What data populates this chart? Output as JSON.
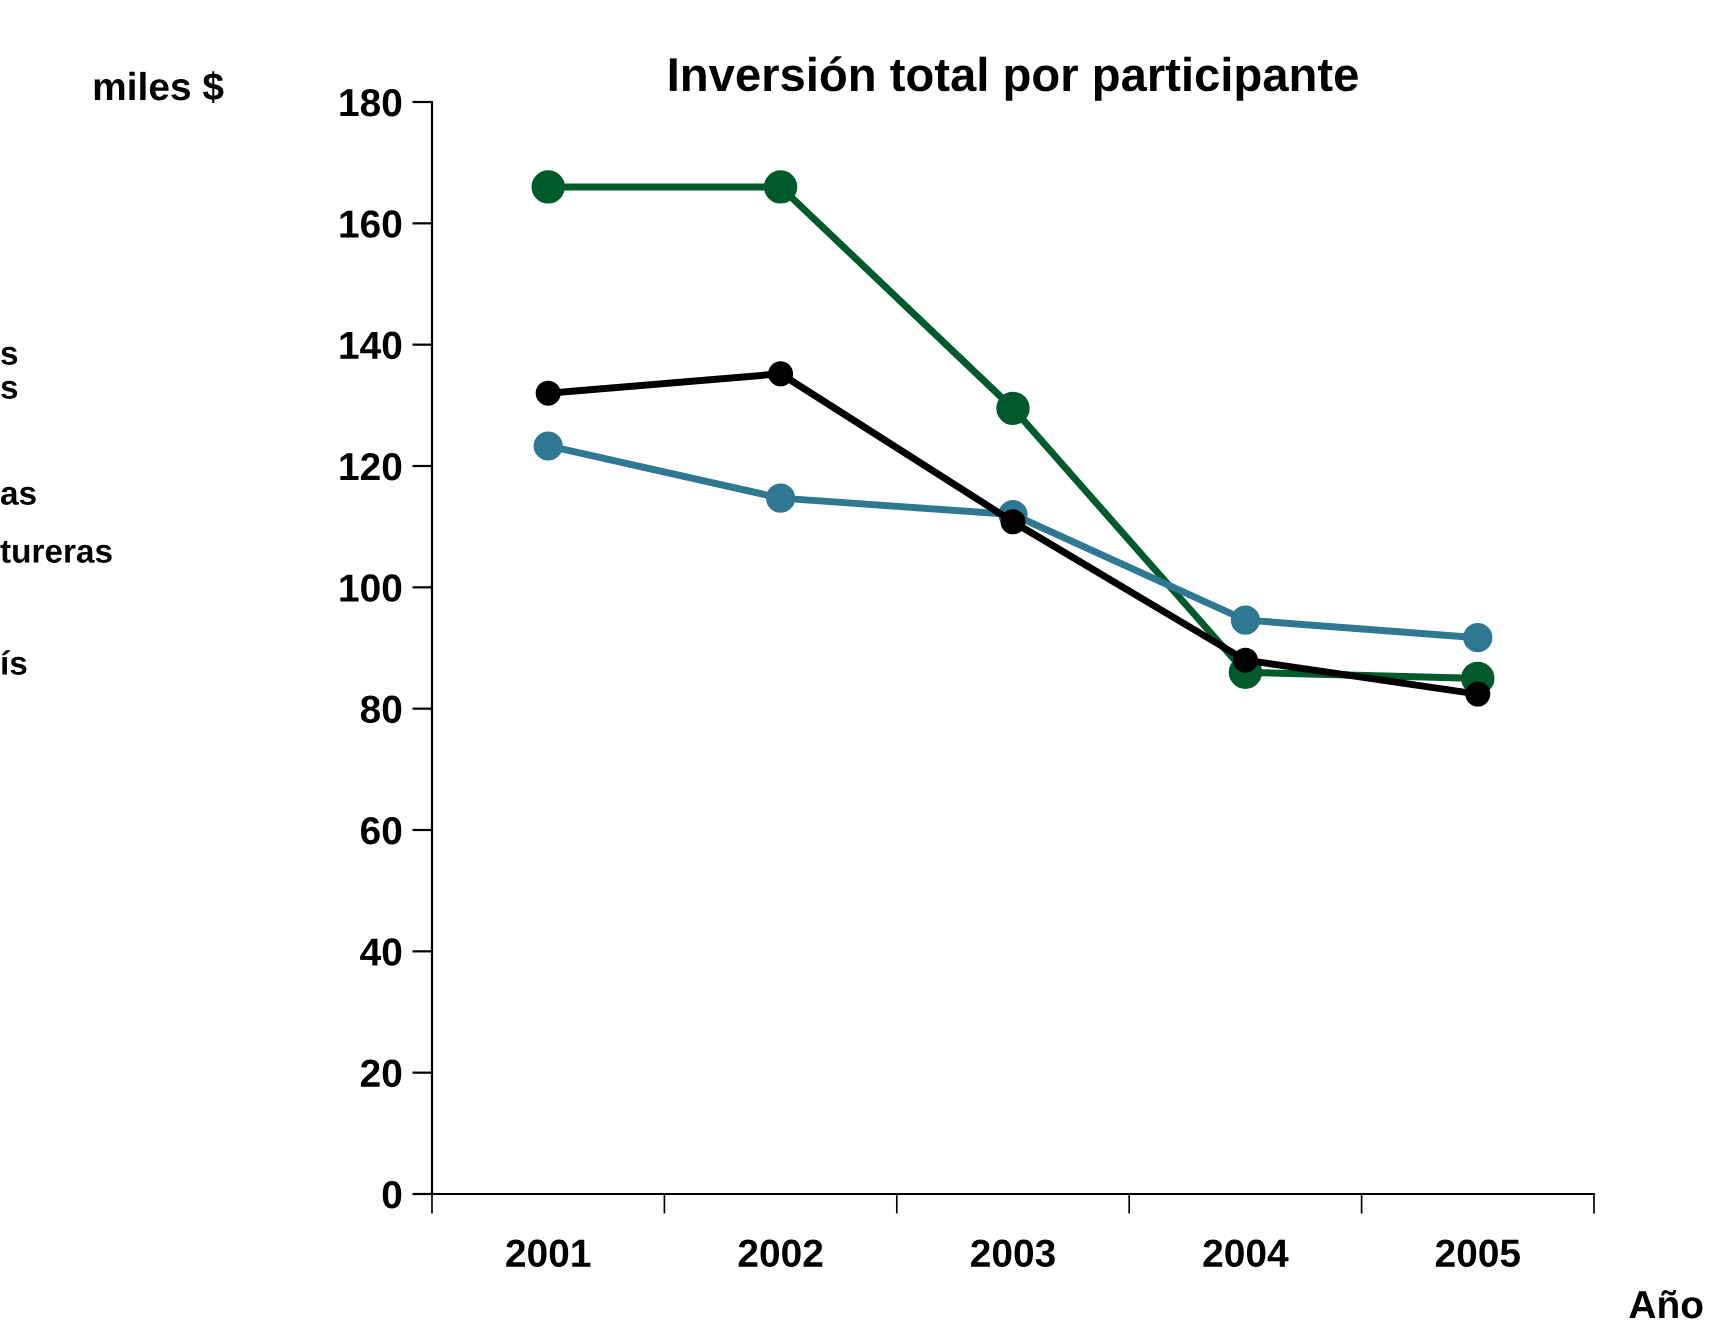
{
  "chart_data": {
    "type": "line",
    "title": "Inversión total por participante",
    "ylabel": "miles $",
    "xlabel": "Año",
    "categories": [
      "2001",
      "2002",
      "2003",
      "2004",
      "2005"
    ],
    "series": [
      {
        "color": "#005a2b",
        "values": [
          166,
          166,
          129.5,
          86,
          85
        ]
      },
      {
        "color": "#2e7891",
        "values": [
          123.3,
          114.7,
          112,
          94.6,
          91.7
        ]
      },
      {
        "color": "#000000",
        "values": [
          132,
          135.2,
          110.8,
          88,
          82.4
        ]
      }
    ],
    "ylim": [
      0,
      180
    ],
    "yticks": [
      0,
      20,
      40,
      60,
      80,
      100,
      120,
      140,
      160,
      180
    ],
    "grid": false,
    "legend": false,
    "marker": "circle",
    "line_style": "solid",
    "annotations": [
      "s",
      "s",
      "as",
      "tureras",
      "ís"
    ]
  }
}
